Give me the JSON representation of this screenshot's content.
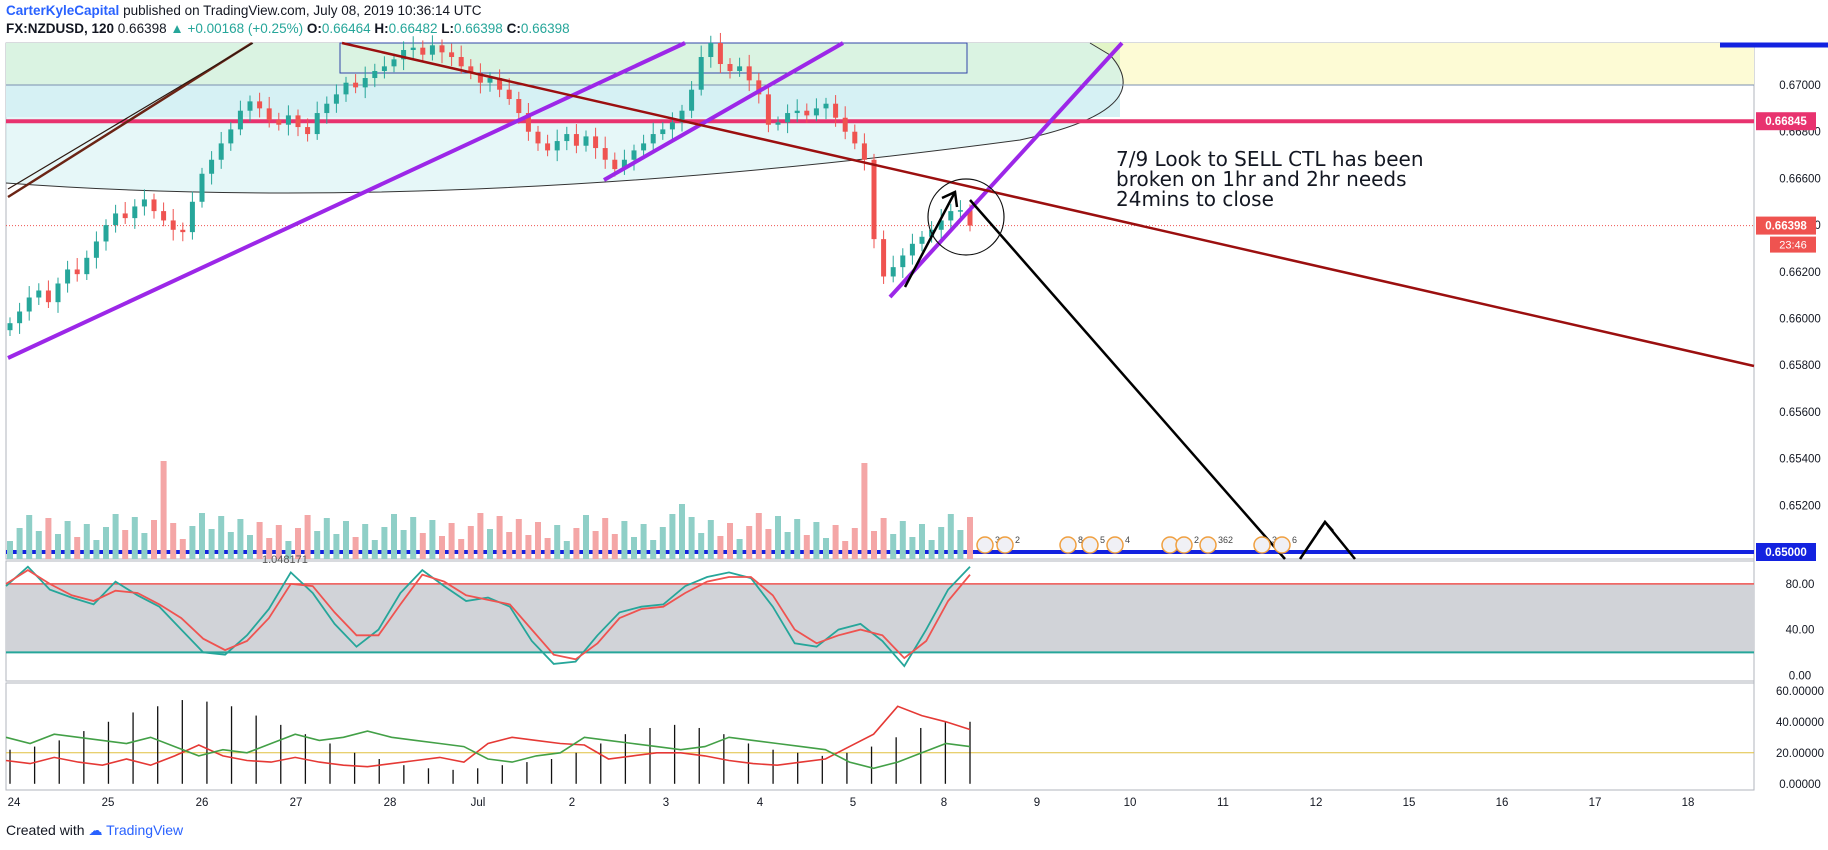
{
  "header": {
    "author": "CarterKyleCapital",
    "published": "published on TradingView.com, July 08, 2019 10:36:14 UTC",
    "symbol": "FX:NZDUSD, 120",
    "last": "0.66398",
    "change": "▲ +0.00168 (+0.25%)",
    "open_label": "O:",
    "open": "0.66464",
    "high_label": "H:",
    "high": "0.66482",
    "low_label": "L:",
    "low": "0.66398",
    "close_label": "C:",
    "close": "0.66398"
  },
  "footer": {
    "created_with": "Created with",
    "brand": "TradingView"
  },
  "annotation": {
    "lines": [
      "7/9 Look to SELL CTL has been",
      "broken on 1hr and 2hr needs",
      "24mins to close"
    ]
  },
  "colors": {
    "bull": "#26a69a",
    "bear": "#ef5350",
    "bull_vol": "#8fcfc7",
    "bear_vol": "#f4a6a6",
    "magenta": "#e8336f",
    "purple": "#9c27e8",
    "maroon": "#9b0f0f",
    "blue": "#1322e0",
    "brown": "#6b2415"
  },
  "chart_data": [
    {
      "type": "candlestick",
      "price_axis": {
        "ylim": [
          0.6497,
          0.6718
        ],
        "ticks": [
          "0.67000",
          "0.66800",
          "0.66600",
          "0.66400",
          "0.66200",
          "0.66000",
          "0.65800",
          "0.65600",
          "0.65400",
          "0.65200"
        ]
      },
      "price_labels": [
        {
          "value": 0.66845,
          "text": "0.66845",
          "color": "#e8336f"
        },
        {
          "value": 0.66398,
          "text": "0.66398",
          "color": "#ef5350"
        },
        {
          "value": 0.65,
          "text": "0.65000",
          "color": "#1322e0"
        }
      ],
      "countdown": "23:46",
      "x_axis": {
        "ticks": [
          "24",
          "25",
          "26",
          "27",
          "28",
          "Jul",
          "2",
          "3",
          "4",
          "5",
          "8",
          "9",
          "10",
          "11",
          "12",
          "15",
          "16",
          "17",
          "18"
        ]
      },
      "horizontal_levels": [
        0.66845,
        0.65
      ],
      "volume_label": "1.048171",
      "event_flags": [
        "3",
        "2",
        "8",
        "5",
        "4",
        "2",
        "2",
        "362",
        "3",
        "6"
      ]
    },
    {
      "type": "line",
      "name": "stochastic",
      "ylim": [
        -5,
        100
      ],
      "ticks": [
        "80.00",
        "40.00",
        "0.00"
      ],
      "levels": [
        80,
        20
      ],
      "series": [
        {
          "color": "#26a69a",
          "values": [
            78,
            95,
            75,
            68,
            62,
            82,
            70,
            60,
            40,
            20,
            18,
            35,
            58,
            90,
            72,
            45,
            25,
            40,
            72,
            92,
            78,
            65,
            68,
            60,
            30,
            10,
            12,
            35,
            55,
            60,
            62,
            78,
            86,
            90,
            85,
            60,
            28,
            25,
            40,
            45,
            30,
            8,
            40,
            75,
            95
          ]
        },
        {
          "color": "#ef5350",
          "values": [
            80,
            92,
            80,
            70,
            65,
            74,
            72,
            62,
            50,
            32,
            22,
            30,
            50,
            80,
            78,
            55,
            35,
            35,
            62,
            88,
            82,
            70,
            66,
            62,
            40,
            18,
            14,
            28,
            50,
            58,
            60,
            72,
            82,
            86,
            86,
            70,
            40,
            28,
            35,
            40,
            35,
            15,
            30,
            65,
            88
          ]
        }
      ]
    },
    {
      "type": "line",
      "name": "dmi",
      "ylim": [
        -4,
        65
      ],
      "ticks": [
        "60.00000",
        "40.00000",
        "20.00000",
        "0.00000"
      ],
      "levels": [
        20
      ],
      "series": [
        {
          "color": "#e53935",
          "values": [
            15,
            13,
            17,
            14,
            12,
            16,
            12,
            18,
            25,
            18,
            15,
            14,
            17,
            14,
            12,
            11,
            13,
            15,
            17,
            14,
            26,
            30,
            28,
            26,
            25,
            16,
            18,
            20,
            20,
            18,
            15,
            13,
            12,
            14,
            16,
            24,
            32,
            50,
            44,
            40,
            35
          ]
        },
        {
          "color": "#43a047",
          "values": [
            30,
            26,
            32,
            30,
            28,
            26,
            30,
            24,
            18,
            22,
            20,
            26,
            32,
            28,
            30,
            34,
            30,
            28,
            26,
            24,
            16,
            14,
            18,
            20,
            30,
            28,
            26,
            24,
            22,
            24,
            30,
            28,
            26,
            24,
            22,
            14,
            10,
            14,
            20,
            26,
            24
          ]
        }
      ],
      "histogram": [
        22,
        24,
        28,
        34,
        40,
        46,
        50,
        54,
        53,
        50,
        44,
        38,
        32,
        26,
        20,
        16,
        12,
        10,
        9,
        10,
        12,
        14,
        16,
        20,
        26,
        32,
        36,
        38,
        36,
        32,
        26,
        22,
        20,
        18,
        20,
        24,
        30,
        36,
        40,
        40
      ]
    }
  ]
}
